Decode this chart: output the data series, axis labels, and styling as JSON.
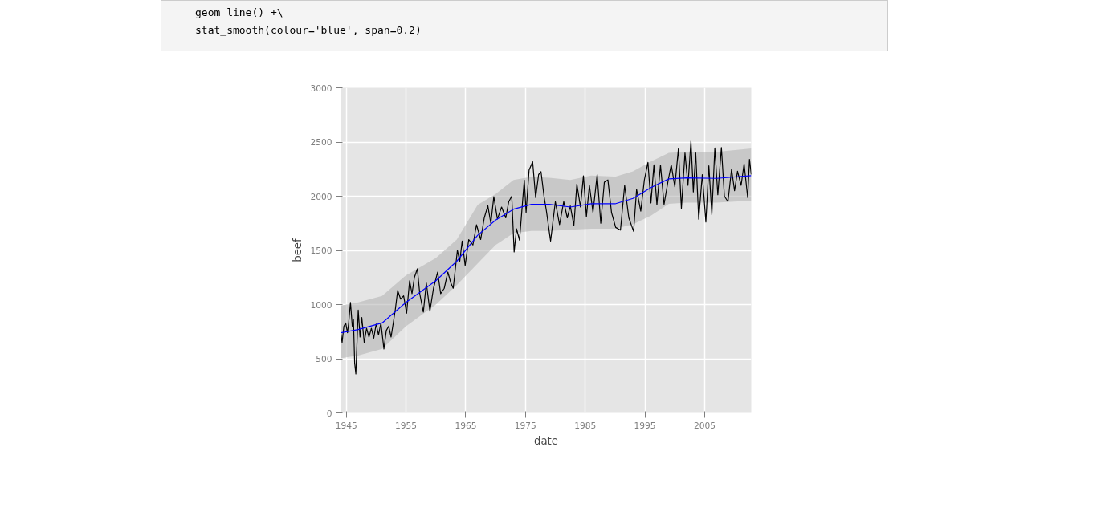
{
  "chart_data": {
    "type": "line",
    "xlabel": "date",
    "ylabel": "beef",
    "annotations": [
      "geom_line() +\\",
      "stat_smooth(colour='blue', span=0.2)"
    ],
    "xlim": [
      1944.1,
      2012.8
    ],
    "ylim": [
      0,
      3000
    ],
    "xticks": [
      1945,
      1955,
      1965,
      1975,
      1985,
      1995,
      2005
    ],
    "yticks": [
      0,
      500,
      1000,
      1500,
      2000,
      2500,
      3000
    ],
    "grid": true,
    "series": [
      {
        "color": "#000000",
        "x": [
          1944.1,
          1944.3,
          1944.6,
          1944.9,
          1945.2,
          1945.4,
          1945.7,
          1946.0,
          1946.2,
          1946.4,
          1946.6,
          1947.0,
          1947.3,
          1947.6,
          1948.0,
          1948.4,
          1948.8,
          1949.2,
          1949.6,
          1950.0,
          1950.4,
          1950.8,
          1951.3,
          1951.7,
          1952.1,
          1952.5,
          1953.2,
          1953.6,
          1954.1,
          1954.6,
          1955.1,
          1955.6,
          1956.0,
          1956.4,
          1956.9,
          1957.3,
          1957.9,
          1958.4,
          1959.0,
          1959.6,
          1960.3,
          1960.8,
          1961.4,
          1962.0,
          1962.5,
          1962.9,
          1963.6,
          1964.0,
          1964.4,
          1964.9,
          1965.5,
          1966.2,
          1966.8,
          1967.5,
          1968.1,
          1968.7,
          1969.2,
          1969.7,
          1970.3,
          1971.0,
          1971.7,
          1972.2,
          1972.7,
          1973.1,
          1973.5,
          1974.0,
          1974.8,
          1975.1,
          1975.6,
          1976.2,
          1976.7,
          1977.2,
          1977.6,
          1978.1,
          1978.5,
          1979.2,
          1980.0,
          1980.7,
          1981.4,
          1982.0,
          1982.5,
          1983.1,
          1983.6,
          1984.2,
          1984.7,
          1985.2,
          1985.7,
          1986.3,
          1987.0,
          1987.6,
          1988.2,
          1988.8,
          1989.4,
          1990.1,
          1990.9,
          1991.6,
          1992.3,
          1993.1,
          1993.6,
          1994.3,
          1994.9,
          1995.5,
          1996.0,
          1996.5,
          1997.0,
          1997.6,
          1998.2,
          1998.9,
          1999.4,
          2000.0,
          2000.6,
          2001.1,
          2001.7,
          2002.2,
          2002.7,
          2003.1,
          2003.5,
          2004.0,
          2004.6,
          2005.2,
          2005.7,
          2006.2,
          2006.7,
          2007.2,
          2007.8,
          2008.3,
          2008.9,
          2009.5,
          2010.0,
          2010.5,
          2011.1,
          2011.6,
          2012.2,
          2012.5,
          2012.8
        ],
        "values": [
          730,
          650,
          800,
          830,
          740,
          830,
          1020,
          800,
          860,
          460,
          360,
          950,
          700,
          880,
          650,
          780,
          700,
          780,
          690,
          820,
          720,
          830,
          590,
          760,
          800,
          700,
          950,
          1130,
          1050,
          1080,
          920,
          1220,
          1100,
          1250,
          1330,
          1100,
          930,
          1200,
          940,
          1150,
          1300,
          1100,
          1150,
          1300,
          1200,
          1150,
          1500,
          1400,
          1586,
          1360,
          1600,
          1550,
          1737,
          1600,
          1800,
          1912,
          1750,
          1995,
          1790,
          1900,
          1800,
          1950,
          2000,
          1486,
          1700,
          1594,
          2150,
          1850,
          2240,
          2318,
          1987,
          2200,
          2226,
          2000,
          1865,
          1586,
          1950,
          1737,
          1950,
          1800,
          1910,
          1730,
          2113,
          1900,
          2188,
          1812,
          2100,
          1850,
          2200,
          1750,
          2130,
          2150,
          1850,
          1712,
          1687,
          2100,
          1800,
          1675,
          2062,
          1862,
          2150,
          2313,
          1937,
          2290,
          1920,
          2288,
          1925,
          2150,
          2290,
          2088,
          2439,
          1887,
          2400,
          2100,
          2509,
          2040,
          2400,
          1787,
          2200,
          1762,
          2280,
          1830,
          2446,
          2013,
          2450,
          2000,
          1950,
          2250,
          2050,
          2230,
          2100,
          2300,
          1987,
          2340,
          2200
        ]
      },
      {
        "color": "#0000ff",
        "x": [
          1944.1,
          1947,
          1951,
          1955,
          1960,
          1963.5,
          1967,
          1970,
          1973,
          1976,
          1979,
          1982.5,
          1986,
          1990,
          1993,
          1996,
          1999,
          2002,
          2007,
          2012.8
        ],
        "values": [
          740,
          770,
          830,
          1020,
          1220,
          1400,
          1640,
          1780,
          1880,
          1925,
          1925,
          1900,
          1930,
          1930,
          1980,
          2080,
          2160,
          2170,
          2165,
          2190
        ],
        "lower": [
          505,
          530,
          590,
          800,
          1000,
          1180,
          1380,
          1550,
          1660,
          1680,
          1680,
          1690,
          1700,
          1700,
          1740,
          1820,
          1930,
          1940,
          1940,
          1960
        ],
        "upper": [
          990,
          1020,
          1080,
          1270,
          1430,
          1600,
          1920,
          2020,
          2150,
          2180,
          2170,
          2150,
          2190,
          2180,
          2230,
          2320,
          2400,
          2410,
          2410,
          2440
        ]
      }
    ]
  }
}
